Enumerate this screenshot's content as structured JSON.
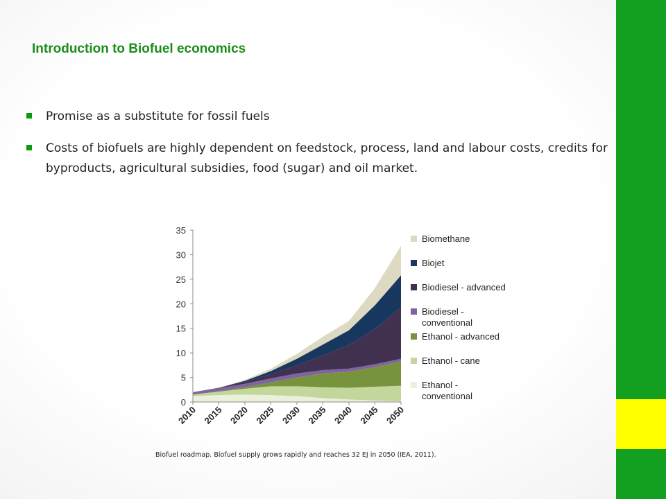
{
  "slide": {
    "title": "Introduction to Biofuel economics",
    "bullets": [
      "Promise as a substitute for fossil fuels",
      "Costs of biofuels are highly dependent on feedstock, process, land and labour costs, credits for byproducts, agricultural subsidies, food (sugar) and oil market."
    ],
    "caption": "Biofuel roadmap. Biofuel supply grows rapidly and reaches 32 EJ in 2050 (IEA, 2011).",
    "colors": {
      "accent_green": "#13a020",
      "accent_yellow": "#ffff00",
      "title_green": "#1a8d1a"
    }
  },
  "chart_data": {
    "type": "area",
    "stacked": true,
    "x": [
      2010,
      2015,
      2020,
      2025,
      2030,
      2035,
      2040,
      2045,
      2050
    ],
    "ylim": [
      0,
      35
    ],
    "yticks": [
      0,
      5,
      10,
      15,
      20,
      25,
      30,
      35
    ],
    "grid": false,
    "legend_position": "right",
    "series": [
      {
        "name": "Ethanol - conventional",
        "color": "#ebf0dc",
        "values": [
          1.2,
          1.4,
          1.5,
          1.4,
          1.2,
          0.8,
          0.5,
          0.3,
          0.1
        ]
      },
      {
        "name": "Ethanol - cane",
        "color": "#c3d69b",
        "values": [
          0.3,
          0.7,
          1.2,
          1.8,
          2.0,
          2.2,
          2.4,
          2.8,
          3.2
        ]
      },
      {
        "name": "Ethanol - advanced",
        "color": "#77933c",
        "values": [
          0.0,
          0.1,
          0.3,
          0.8,
          1.8,
          2.8,
          3.3,
          4.0,
          5.0
        ]
      },
      {
        "name": "Biodiesel - conventional",
        "color": "#8064a2",
        "values": [
          0.5,
          0.6,
          0.7,
          0.8,
          0.8,
          0.7,
          0.6,
          0.6,
          0.5
        ]
      },
      {
        "name": "Biodiesel - advanced",
        "color": "#403151",
        "values": [
          0.0,
          0.1,
          0.4,
          0.9,
          1.7,
          3.0,
          4.8,
          7.2,
          10.5
        ]
      },
      {
        "name": "Biojet",
        "color": "#17375e",
        "values": [
          0.0,
          0.0,
          0.2,
          0.6,
          1.3,
          2.2,
          3.0,
          4.8,
          6.5
        ]
      },
      {
        "name": "Biomethane",
        "color": "#ddd9c3",
        "values": [
          0.0,
          0.0,
          0.2,
          0.5,
          1.0,
          1.6,
          1.9,
          3.5,
          6.0
        ]
      }
    ]
  }
}
